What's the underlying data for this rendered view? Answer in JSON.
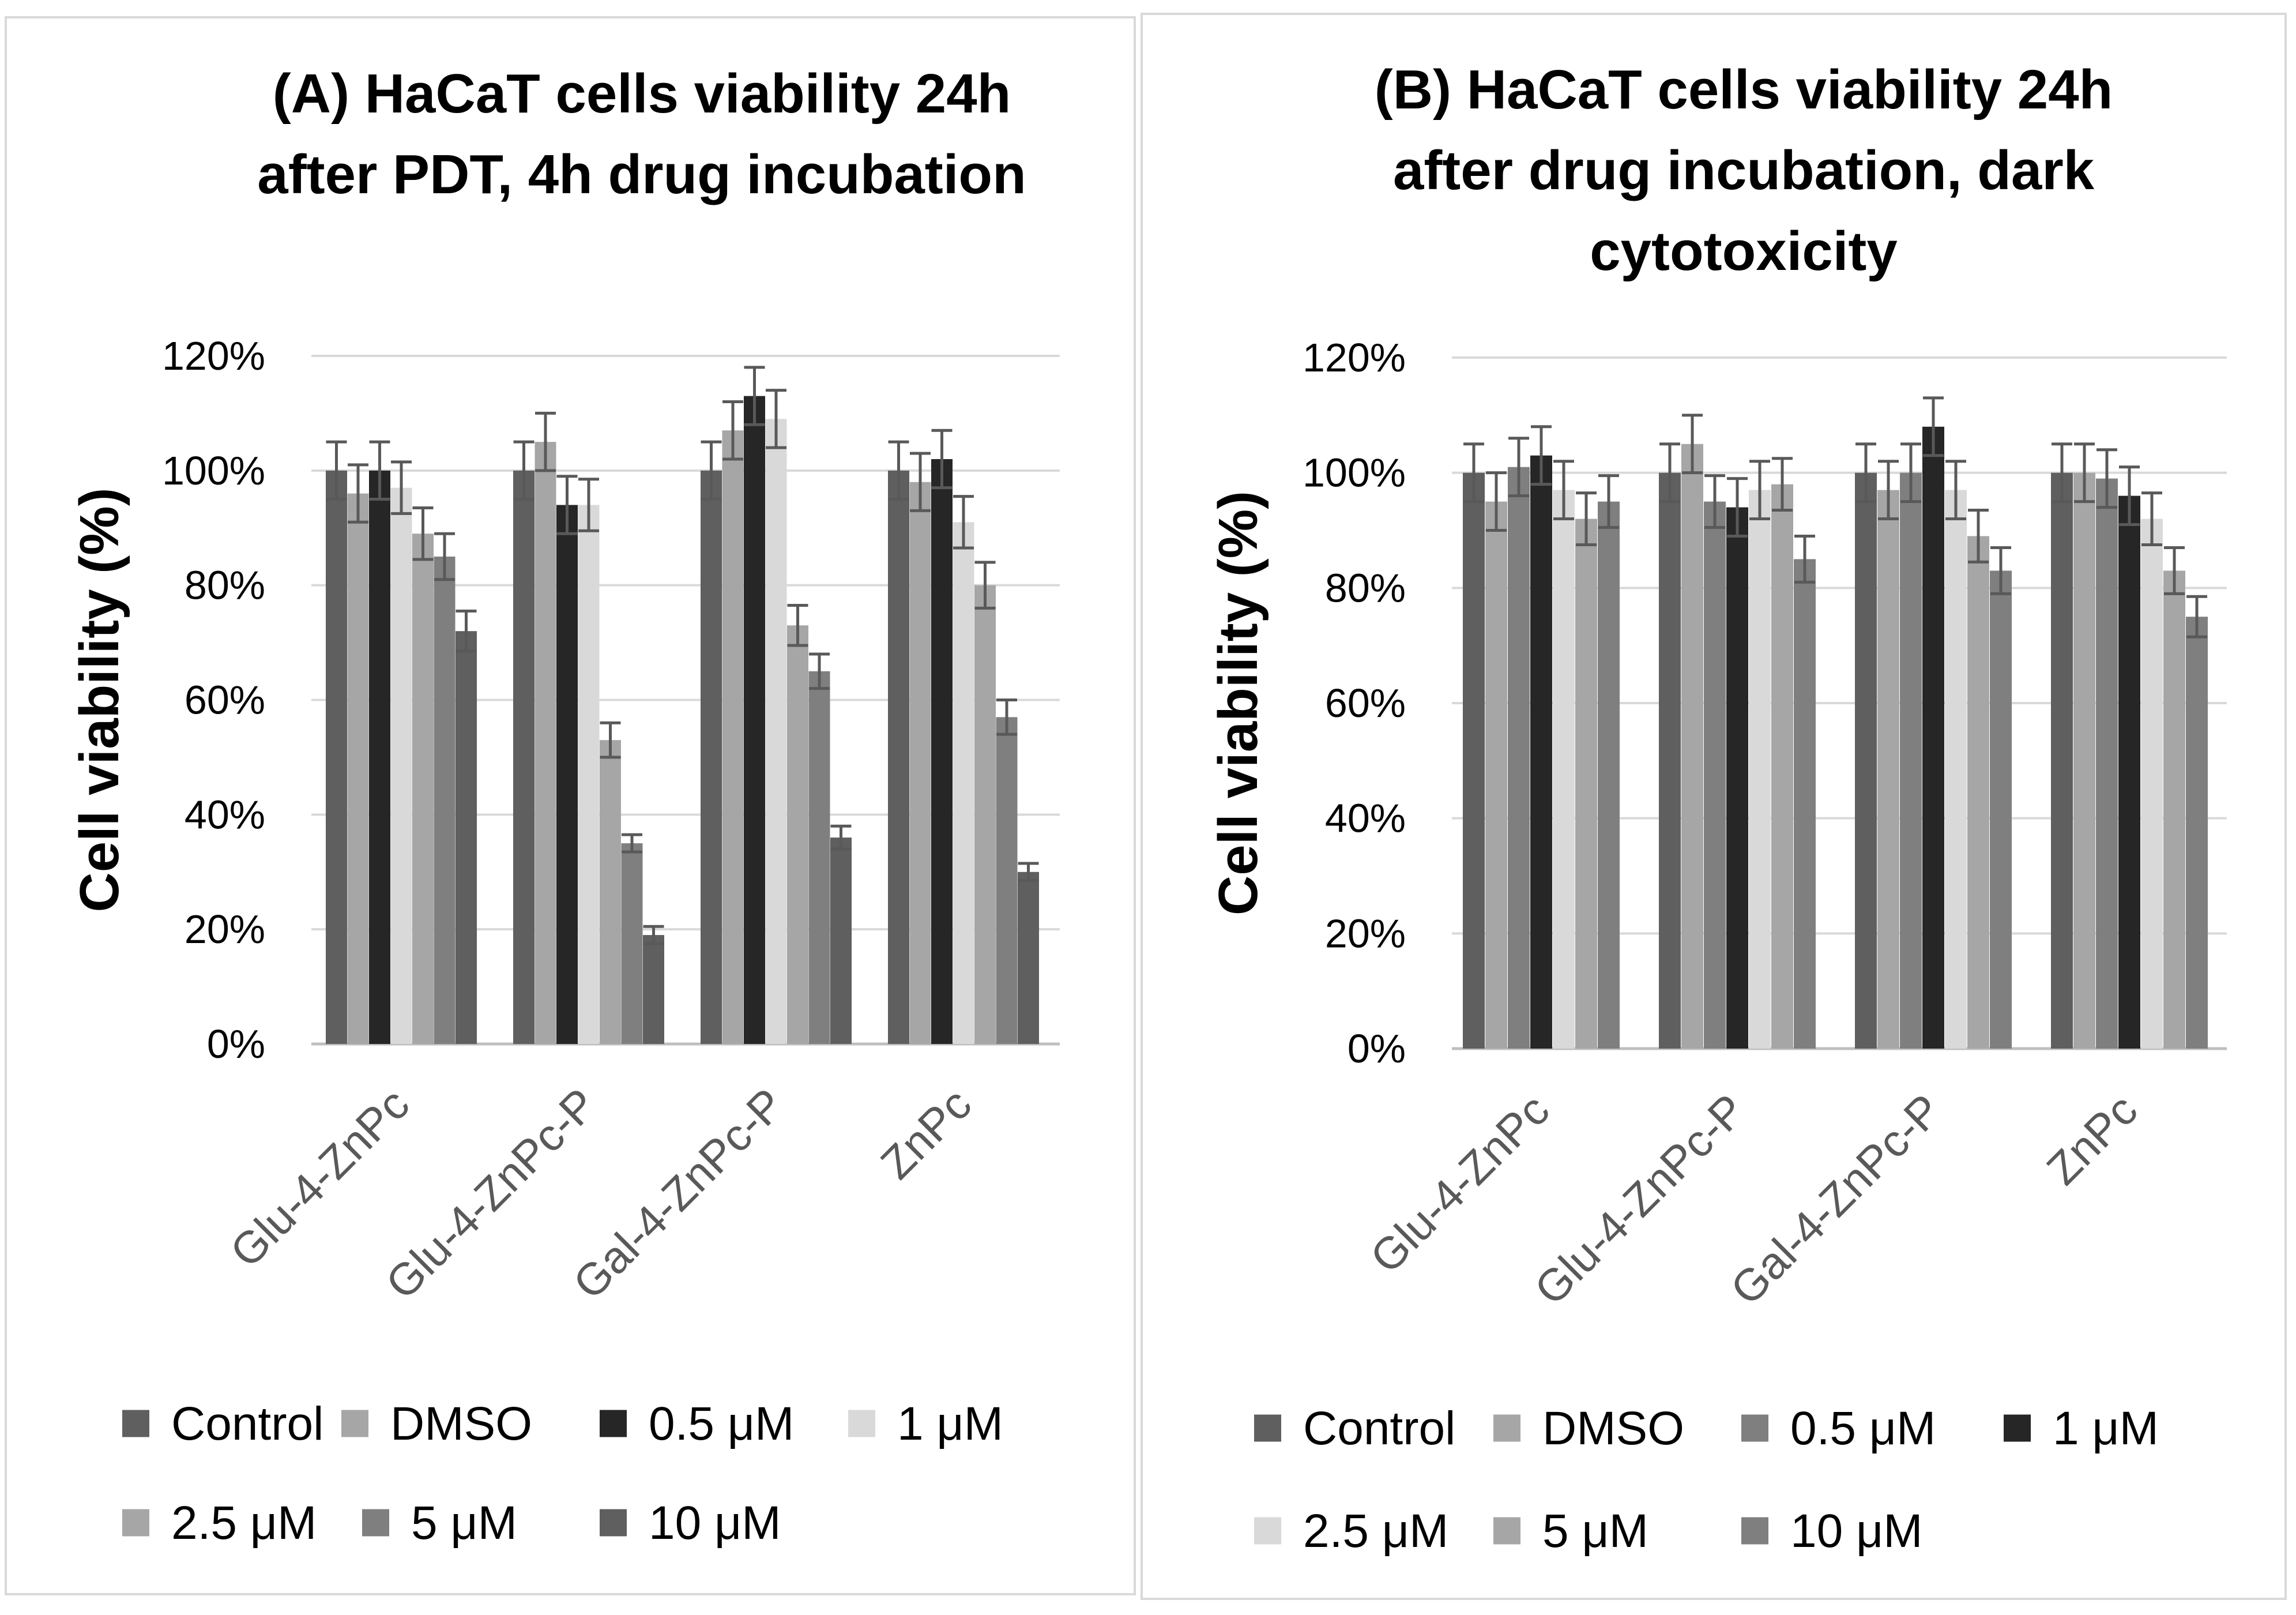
{
  "chart_data": [
    {
      "type": "bar",
      "title": [
        "(A) HaCaT cells viability 24h",
        "after PDT, 4h drug incubation"
      ],
      "ylabel": "Cell viability (%)",
      "xlabel": "",
      "ylim": [
        0,
        120
      ],
      "yticks": [
        "0%",
        "20%",
        "40%",
        "60%",
        "80%",
        "100%",
        "120%"
      ],
      "grid": true,
      "legend_position": "bottom",
      "categories": [
        "Glu-4-ZnPc",
        "Glu-4-ZnPc-P",
        "Gal-4-ZnPc-P",
        "ZnPc"
      ],
      "series": [
        {
          "name": "Control",
          "color": "#5f5f5f",
          "values": [
            100,
            100,
            100,
            100
          ],
          "errors": [
            5,
            5,
            5,
            5
          ]
        },
        {
          "name": "DMSO",
          "color": "#a6a6a6",
          "values": [
            96,
            105,
            107,
            98
          ],
          "errors": [
            5,
            5,
            5,
            5
          ]
        },
        {
          "name": "0.5 μM",
          "color": "#262626",
          "values": [
            100,
            94,
            113,
            102
          ],
          "errors": [
            5,
            5,
            5,
            5
          ]
        },
        {
          "name": "1 μM",
          "color": "#d9d9d9",
          "values": [
            97,
            94,
            109,
            91
          ],
          "errors": [
            4.5,
            4.5,
            5,
            4.5
          ]
        },
        {
          "name": "2.5 μM",
          "color": "#a6a6a6",
          "values": [
            89,
            53,
            73,
            80
          ],
          "errors": [
            4.5,
            3,
            3.5,
            4
          ]
        },
        {
          "name": "5 μM",
          "color": "#7f7f7f",
          "values": [
            85,
            35,
            65,
            57
          ],
          "errors": [
            4,
            1.5,
            3,
            3
          ]
        },
        {
          "name": "10 μM",
          "color": "#5f5f5f",
          "values": [
            72,
            19,
            36,
            30
          ],
          "errors": [
            3.5,
            1.5,
            2,
            1.5
          ]
        }
      ]
    },
    {
      "type": "bar",
      "title": [
        "(B) HaCaT cells viability 24h",
        "after drug incubation, dark",
        "cytotoxicity"
      ],
      "ylabel": "Cell viability (%)",
      "xlabel": "",
      "ylim": [
        0,
        120
      ],
      "yticks": [
        "0%",
        "20%",
        "40%",
        "60%",
        "80%",
        "100%",
        "120%"
      ],
      "grid": true,
      "legend_position": "bottom",
      "categories": [
        "Glu-4-ZnPc",
        "Glu-4-ZnPc-P",
        "Gal-4-ZnPc-P",
        "ZnPc"
      ],
      "series": [
        {
          "name": "Control",
          "color": "#5f5f5f",
          "values": [
            100,
            100,
            100,
            100
          ],
          "errors": [
            5,
            5,
            5,
            5
          ]
        },
        {
          "name": "DMSO",
          "color": "#a6a6a6",
          "values": [
            95,
            105,
            97,
            100
          ],
          "errors": [
            5,
            5,
            5,
            5
          ]
        },
        {
          "name": "0.5 μM",
          "color": "#7f7f7f",
          "values": [
            101,
            95,
            100,
            99
          ],
          "errors": [
            5,
            4.5,
            5,
            5
          ]
        },
        {
          "name": "1 μM",
          "color": "#262626",
          "values": [
            103,
            94,
            108,
            96
          ],
          "errors": [
            5,
            5,
            5,
            5
          ]
        },
        {
          "name": "2.5 μM",
          "color": "#d9d9d9",
          "values": [
            97,
            97,
            97,
            92
          ],
          "errors": [
            5,
            5,
            5,
            4.5
          ]
        },
        {
          "name": "5 μM",
          "color": "#a6a6a6",
          "values": [
            92,
            98,
            89,
            83
          ],
          "errors": [
            4.5,
            4.5,
            4.5,
            4
          ]
        },
        {
          "name": "10 μM",
          "color": "#7f7f7f",
          "values": [
            95,
            85,
            83,
            75
          ],
          "errors": [
            4.5,
            4,
            4,
            3.5
          ]
        }
      ]
    }
  ]
}
